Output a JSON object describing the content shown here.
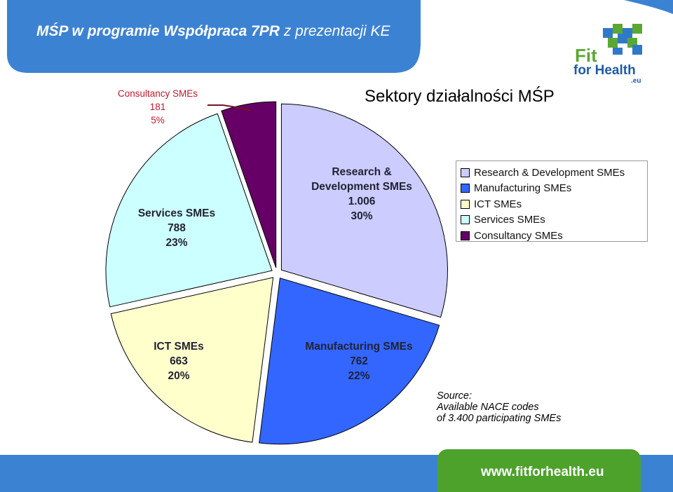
{
  "header": {
    "title_bold": "MŚP w programie Współpraca 7PR",
    "title_rest": " z prezentacji KE"
  },
  "logo": {
    "line1": "Fit",
    "line2": "for Health",
    "suffix": ".eu"
  },
  "colors": {
    "header_blue": "#3c82d3",
    "footer_green": "#4ca22a",
    "accent_red": "#c0182a"
  },
  "chart_data": {
    "type": "pie",
    "title": "Sektory działalności MŚP",
    "slices": [
      {
        "name": "Research & Development SMEs",
        "label_lines": [
          "Research &",
          "Development SMEs",
          "1.006",
          "30%"
        ],
        "value": 1006,
        "percent": 30,
        "color": "#ccccff"
      },
      {
        "name": "Manufacturing SMEs",
        "label_lines": [
          "Manufacturing SMEs",
          "762",
          "22%"
        ],
        "value": 762,
        "percent": 22,
        "color": "#3366ff"
      },
      {
        "name": "ICT SMEs",
        "label_lines": [
          "ICT SMEs",
          "663",
          "20%"
        ],
        "value": 663,
        "percent": 20,
        "color": "#ffffcc"
      },
      {
        "name": "Services SMEs",
        "label_lines": [
          "Services SMEs",
          "788",
          "23%"
        ],
        "value": 788,
        "percent": 23,
        "color": "#ccffff"
      },
      {
        "name": "Consultancy SMEs",
        "label_lines": [
          "Consultancy SMEs",
          "181",
          "5%"
        ],
        "value": 181,
        "percent": 5,
        "color": "#660066"
      }
    ],
    "legend": [
      "Research & Development SMEs",
      "Manufacturing SMEs",
      "ICT SMEs",
      "Services SMEs",
      "Consultancy SMEs"
    ],
    "legend_position": "right"
  },
  "source": {
    "line1": "Source:",
    "line2": "Available NACE codes",
    "line3": "of 3.400 participating SMEs"
  },
  "footer": {
    "url": "www.fitforhealth.eu"
  }
}
